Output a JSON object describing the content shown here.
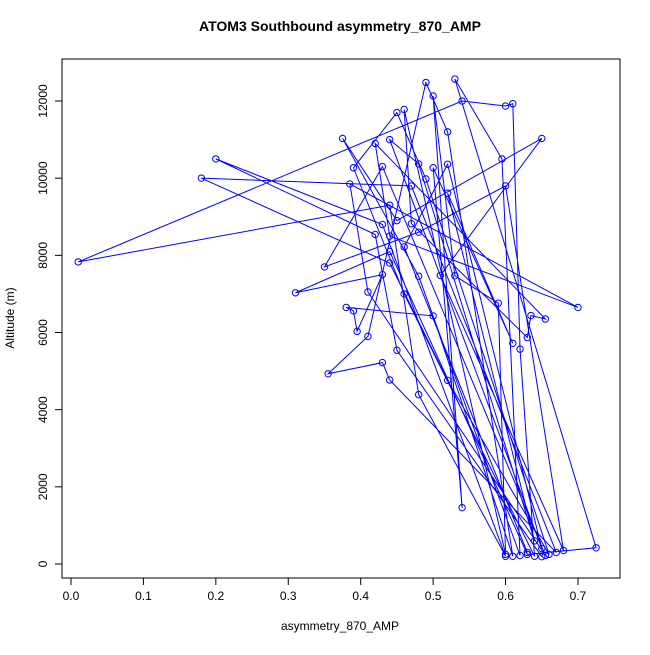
{
  "chart_data": {
    "type": "line-points",
    "title": "ATOM3 Southbound asymmetry_870_AMP",
    "x_label": "asymmetry_870_AMP",
    "y_label": "Altitude (m)",
    "color": "#0000ff",
    "xlim": [
      -0.0124,
      0.758
    ],
    "ylim": [
      -363,
      13089
    ],
    "xticks": [
      {
        "value": 0,
        "label": "0.0"
      },
      0.1,
      0.2,
      0.3,
      0.4,
      0.5,
      0.6,
      0.7
    ],
    "yticks": [
      0,
      2000,
      4000,
      6000,
      8000,
      10000,
      12000
    ],
    "x": [
      0.65,
      0.45,
      0.42,
      0.2,
      0.43,
      0.6,
      0.48,
      0.44,
      0.01,
      0.54,
      0.6,
      0.61,
      0.62,
      0.64,
      0.46,
      0.39,
      0.45,
      0.49,
      0.66,
      0.52,
      0.44,
      0.18,
      0.47,
      0.67,
      0.44,
      0.43,
      0.355,
      0.41,
      0.49,
      0.52,
      0.61,
      0.5,
      0.38,
      0.39,
      0.395,
      0.43,
      0.31,
      0.44,
      0.63,
      0.725,
      0.53,
      0.595,
      0.62,
      0.48,
      0.375,
      0.45,
      0.65,
      0.51,
      0.68,
      0.6,
      0.48,
      0.35,
      0.43,
      0.655,
      0.41,
      0.385,
      0.7,
      0.44,
      0.42,
      0.655,
      0.635,
      0.63,
      0.47,
      0.46,
      0.6,
      0.59,
      0.53,
      0.5,
      0.54,
      0.5,
      0.61,
      0.52,
      0.64,
      0.48,
      0.44,
      0.65,
      0.52,
      0.46,
      0.63
    ],
    "y": [
      190,
      5540,
      8540,
      10500,
      8800,
      200,
      4390,
      9300,
      7830,
      12000,
      11870,
      11930,
      5570,
      200,
      7000,
      10270,
      11700,
      9980,
      250,
      4760,
      7800,
      10000,
      9800,
      300,
      4770,
      5220,
      4930,
      5900,
      12480,
      11200,
      200,
      6430,
      6650,
      6560,
      6030,
      7500,
      7030,
      8100,
      250,
      420,
      12570,
      10500,
      220,
      7460,
      11030,
      8900,
      11030,
      7480,
      350,
      9800,
      8600,
      7700,
      10300,
      220,
      7050,
      9850,
      6650,
      8500,
      10900,
      6350,
      6440,
      5870,
      8820,
      11780,
      250,
      6760,
      7470,
      12130,
      1460,
      10270,
      5720,
      9610,
      600,
      10370,
      11000,
      400,
      10360,
      8220,
      300
    ]
  }
}
